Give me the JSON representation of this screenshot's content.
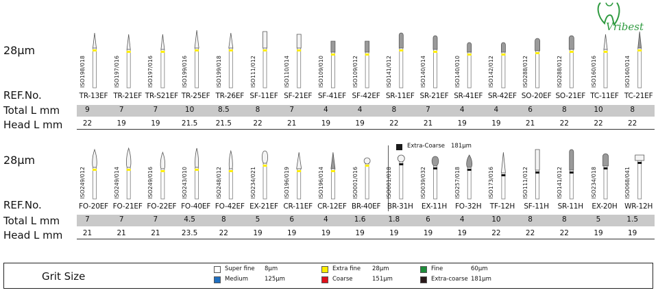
{
  "brand": {
    "name": "Vribest"
  },
  "section1": {
    "grit_label": "28µm",
    "ref_label": "REF.No.",
    "total_label": "Total L mm",
    "head_label": "Head L mm",
    "items": [
      {
        "iso": "ISO198/018",
        "ref": "TR-13EF",
        "total": "9",
        "head": "22"
      },
      {
        "iso": "ISO197/016",
        "ref": "TR-21EF",
        "total": "7",
        "head": "19"
      },
      {
        "iso": "ISO197/016",
        "ref": "TR-S21EF",
        "total": "7",
        "head": "19"
      },
      {
        "iso": "ISO199/016",
        "ref": "TR-25EF",
        "total": "10",
        "head": "21.5"
      },
      {
        "iso": "ISO199/018",
        "ref": "TR-26EF",
        "total": "8.5",
        "head": "21.5"
      },
      {
        "iso": "ISO111/012",
        "ref": "SF-11EF",
        "total": "8",
        "head": "22"
      },
      {
        "iso": "ISO110/014",
        "ref": "SF-21EF",
        "total": "7",
        "head": "21"
      },
      {
        "iso": "ISO109/010",
        "ref": "SF-41EF",
        "total": "4",
        "head": "19"
      },
      {
        "iso": "ISO109/012",
        "ref": "SF-42EF",
        "total": "4",
        "head": "19"
      },
      {
        "iso": "ISO141/012",
        "ref": "SR-11EF",
        "total": "8",
        "head": "22"
      },
      {
        "iso": "ISO140/014",
        "ref": "SR-21EF",
        "total": "7",
        "head": "21"
      },
      {
        "iso": "ISO140/010",
        "ref": "SR-41EF",
        "total": "4",
        "head": "19"
      },
      {
        "iso": "ISO142/012",
        "ref": "SR-42EF",
        "total": "4",
        "head": "19"
      },
      {
        "iso": "ISO288/012",
        "ref": "SO-20EF",
        "total": "6",
        "head": "21"
      },
      {
        "iso": "ISO288/012",
        "ref": "SO-21EF",
        "total": "8",
        "head": "22"
      },
      {
        "iso": "ISO160/016",
        "ref": "TC-11EF",
        "total": "10",
        "head": "22"
      },
      {
        "iso": "ISO160/014",
        "ref": "TC-21EF",
        "total": "8",
        "head": "22"
      }
    ]
  },
  "section2": {
    "grit_label": "28µm",
    "ref_label": "REF.No.",
    "total_label": "Total L mm",
    "head_label": "Head L mm",
    "extra_coarse_note": {
      "label": "Extra-Coarse",
      "value": "181µm"
    },
    "items": [
      {
        "iso": "ISO249/012",
        "ref": "FO-20EF",
        "total": "7",
        "head": "21",
        "grit": "yellow"
      },
      {
        "iso": "ISO249/014",
        "ref": "FO-21EF",
        "total": "7",
        "head": "21",
        "grit": "yellow"
      },
      {
        "iso": "ISO249/016",
        "ref": "FO-22EF",
        "total": "7",
        "head": "21",
        "grit": "yellow"
      },
      {
        "iso": "ISO243/010",
        "ref": "FO-40EF",
        "total": "4.5",
        "head": "23.5",
        "grit": "yellow"
      },
      {
        "iso": "ISO248/012",
        "ref": "FO-42EF",
        "total": "8",
        "head": "22",
        "grit": "yellow"
      },
      {
        "iso": "ISO234/021",
        "ref": "EX-21EF",
        "total": "5",
        "head": "19",
        "grit": "yellow"
      },
      {
        "iso": "ISO196/019",
        "ref": "CR-11EF",
        "total": "6",
        "head": "19",
        "grit": "yellow"
      },
      {
        "iso": "ISO196/014",
        "ref": "CR-12EF",
        "total": "4",
        "head": "19",
        "grit": "yellow"
      },
      {
        "iso": "ISO001/016",
        "ref": "BR-40EF",
        "total": "1.6",
        "head": "19",
        "grit": "yellow"
      },
      {
        "iso": "ISO001/018",
        "ref": "BR-31H",
        "total": "1.8",
        "head": "19",
        "grit": "black"
      },
      {
        "iso": "ISO039/032",
        "ref": "EX-11H",
        "total": "6",
        "head": "19",
        "grit": "black"
      },
      {
        "iso": "ISO257/018",
        "ref": "FO-32H",
        "total": "4",
        "head": "19",
        "grit": "black"
      },
      {
        "iso": "ISO173/016",
        "ref": "TF-12H",
        "total": "10",
        "head": "22",
        "grit": "black"
      },
      {
        "iso": "ISO111/012",
        "ref": "SF-11H",
        "total": "8",
        "head": "22",
        "grit": "black"
      },
      {
        "iso": "ISO141/012",
        "ref": "SR-11H",
        "total": "8",
        "head": "22",
        "grit": "black"
      },
      {
        "iso": "ISO234/018",
        "ref": "EX-20H",
        "total": "5",
        "head": "19",
        "grit": "black"
      },
      {
        "iso": "ISO068/041",
        "ref": "WR-12H",
        "total": "1.5",
        "head": "19",
        "grit": "black"
      }
    ]
  },
  "legend": {
    "title": "Grit Size",
    "items": [
      {
        "name": "Super fine",
        "value": "8µm",
        "color": "#ffffff"
      },
      {
        "name": "Extra fine",
        "value": "28µm",
        "color": "#ffee00"
      },
      {
        "name": "Fine",
        "value": "60µm",
        "color": "#1e8c3a"
      },
      {
        "name": "Medium",
        "value": "125µm",
        "color": "#1f6fc0"
      },
      {
        "name": "Coarse",
        "value": "151µm",
        "color": "#e0101a"
      },
      {
        "name": "Extra-coarse",
        "value": "181µm",
        "color": "#2a1a1a"
      }
    ]
  }
}
